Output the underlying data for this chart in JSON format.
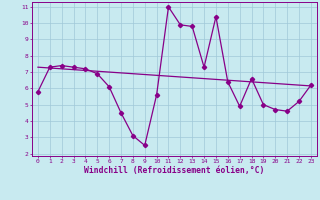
{
  "title": "",
  "xlabel": "Windchill (Refroidissement éolien,°C)",
  "ylabel": "",
  "bg_color": "#c8eaf0",
  "line_color": "#880088",
  "xmin": 0,
  "xmax": 23,
  "ymin": 2,
  "ymax": 11,
  "yticks": [
    2,
    3,
    4,
    5,
    6,
    7,
    8,
    9,
    10,
    11
  ],
  "xticks": [
    0,
    1,
    2,
    3,
    4,
    5,
    6,
    7,
    8,
    9,
    10,
    11,
    12,
    13,
    14,
    15,
    16,
    17,
    18,
    19,
    20,
    21,
    22,
    23
  ],
  "data_x": [
    0,
    1,
    2,
    3,
    4,
    5,
    6,
    7,
    8,
    9,
    10,
    11,
    12,
    13,
    14,
    15,
    16,
    17,
    18,
    19,
    20,
    21,
    22,
    23
  ],
  "data_y": [
    5.8,
    7.3,
    7.4,
    7.3,
    7.2,
    6.9,
    6.1,
    4.5,
    3.1,
    2.5,
    5.6,
    11.0,
    9.9,
    9.8,
    7.3,
    10.4,
    6.4,
    4.9,
    6.6,
    5.0,
    4.7,
    4.6,
    5.2,
    6.2
  ],
  "trend_x": [
    0,
    23
  ],
  "trend_y": [
    7.3,
    6.15
  ],
  "grid_color": "#a0c8d8",
  "marker": "D",
  "marker_size": 2.2,
  "line_width": 0.9,
  "tick_fontsize": 4.5,
  "xlabel_fontsize": 5.8,
  "xlabel_fontweight": "bold"
}
